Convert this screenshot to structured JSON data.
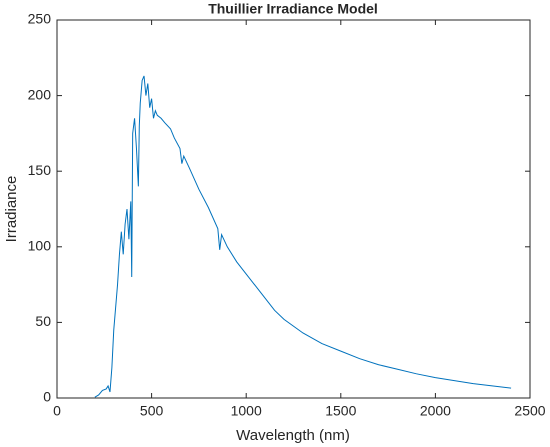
{
  "chart_data": {
    "type": "line",
    "title": "Thuillier Irradiance Model",
    "xlabel": "Wavelength (nm)",
    "ylabel": "Irradiance",
    "x": [
      200,
      220,
      240,
      260,
      270,
      280,
      290,
      300,
      310,
      320,
      330,
      340,
      350,
      360,
      370,
      380,
      390,
      395,
      400,
      410,
      420,
      430,
      435,
      440,
      450,
      460,
      470,
      480,
      490,
      500,
      510,
      520,
      530,
      550,
      570,
      600,
      620,
      650,
      660,
      670,
      700,
      750,
      800,
      850,
      860,
      870,
      900,
      950,
      1000,
      1050,
      1100,
      1150,
      1200,
      1300,
      1400,
      1500,
      1600,
      1700,
      1800,
      1900,
      2000,
      2100,
      2200,
      2300,
      2400
    ],
    "series": [
      {
        "name": "Irradiance",
        "color": "#0072bd",
        "values": [
          0.5,
          2,
          5,
          6,
          8,
          4,
          20,
          45,
          60,
          75,
          95,
          110,
          95,
          115,
          125,
          105,
          130,
          80,
          175,
          185,
          165,
          140,
          180,
          195,
          210,
          213,
          200,
          208,
          192,
          198,
          185,
          190,
          187,
          185,
          182,
          178,
          172,
          165,
          155,
          160,
          152,
          138,
          126,
          112,
          98,
          108,
          100,
          90,
          82,
          74,
          66,
          58,
          52,
          43,
          36,
          31,
          26,
          22,
          19,
          16,
          13.5,
          11.5,
          9.5,
          8,
          6.5
        ]
      }
    ],
    "xlim": [
      0,
      2500
    ],
    "xticks": [
      0,
      500,
      1000,
      1500,
      2000,
      2500
    ],
    "ylim": [
      0,
      250
    ],
    "yticks": [
      0,
      50,
      100,
      150,
      200,
      250
    ]
  }
}
